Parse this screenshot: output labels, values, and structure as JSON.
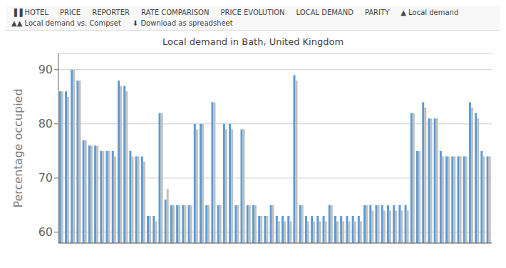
{
  "chart_data": {
    "type": "bar",
    "title": "Local demand in Bath, United Kingdom",
    "ylabel": "Percentage occupied",
    "annotations": [
      "▐▐ HOTEL",
      "PRICE",
      "REPORTER",
      "RATE COMPARISON",
      "PRICE EVOLUTION",
      "LOCAL DEMAND",
      "PARITY",
      "▲ Local demand",
      "▲▲ Local demand vs. Compset",
      "⬇ Download as spreadsheet"
    ],
    "categories": [
      null,
      null,
      null,
      null,
      null,
      null,
      null,
      null,
      null,
      null,
      null,
      null,
      null,
      null,
      null,
      null,
      null,
      null,
      null,
      null,
      null,
      null,
      null,
      null,
      null,
      null,
      null,
      null,
      null,
      null,
      null,
      null,
      null,
      null,
      null,
      null,
      null,
      null,
      null,
      null,
      null,
      null,
      null,
      null,
      null,
      null,
      null,
      null,
      null,
      null,
      null,
      null,
      null,
      null,
      null,
      null,
      null,
      null,
      null,
      null,
      null,
      null,
      null,
      null,
      null,
      null,
      null,
      null,
      null,
      null,
      null,
      null,
      null,
      null
    ],
    "series": [
      {
        "color": "#5b9bd5",
        "values": [
          86,
          86,
          90,
          88,
          77,
          76,
          76,
          75,
          75,
          75,
          88,
          87,
          75,
          74,
          74,
          63,
          63,
          82,
          66,
          65,
          65,
          65,
          65,
          80,
          80,
          65,
          84,
          65,
          80,
          80,
          65,
          79,
          65,
          65,
          63,
          63,
          65,
          63,
          63,
          63,
          89,
          65,
          63,
          63,
          63,
          63,
          65,
          63,
          63,
          63,
          63,
          63,
          65,
          65,
          65,
          65,
          65,
          65,
          65,
          65,
          82,
          75,
          84,
          81,
          81,
          75,
          74,
          74,
          74,
          74,
          84,
          82,
          75,
          74
        ]
      },
      {
        "color": "#c0c0c0",
        "values": [
          86,
          85,
          90,
          88,
          77,
          76,
          76,
          75,
          75,
          74,
          87,
          86,
          74,
          74,
          73,
          63,
          62,
          82,
          68,
          65,
          65,
          65,
          65,
          79,
          80,
          65,
          84,
          65,
          79,
          79,
          65,
          79,
          65,
          65,
          63,
          63,
          65,
          62,
          62,
          62,
          88,
          65,
          62,
          62,
          62,
          62,
          65,
          62,
          62,
          62,
          62,
          62,
          65,
          64,
          65,
          64,
          64,
          64,
          64,
          64,
          82,
          75,
          83,
          81,
          81,
          74,
          74,
          74,
          74,
          74,
          83,
          81,
          74,
          74
        ]
      }
    ],
    "ylim": [
      58,
      93
    ],
    "yticks": [
      60,
      70,
      80,
      90
    ],
    "grid": true,
    "tick_labels": "y"
  }
}
